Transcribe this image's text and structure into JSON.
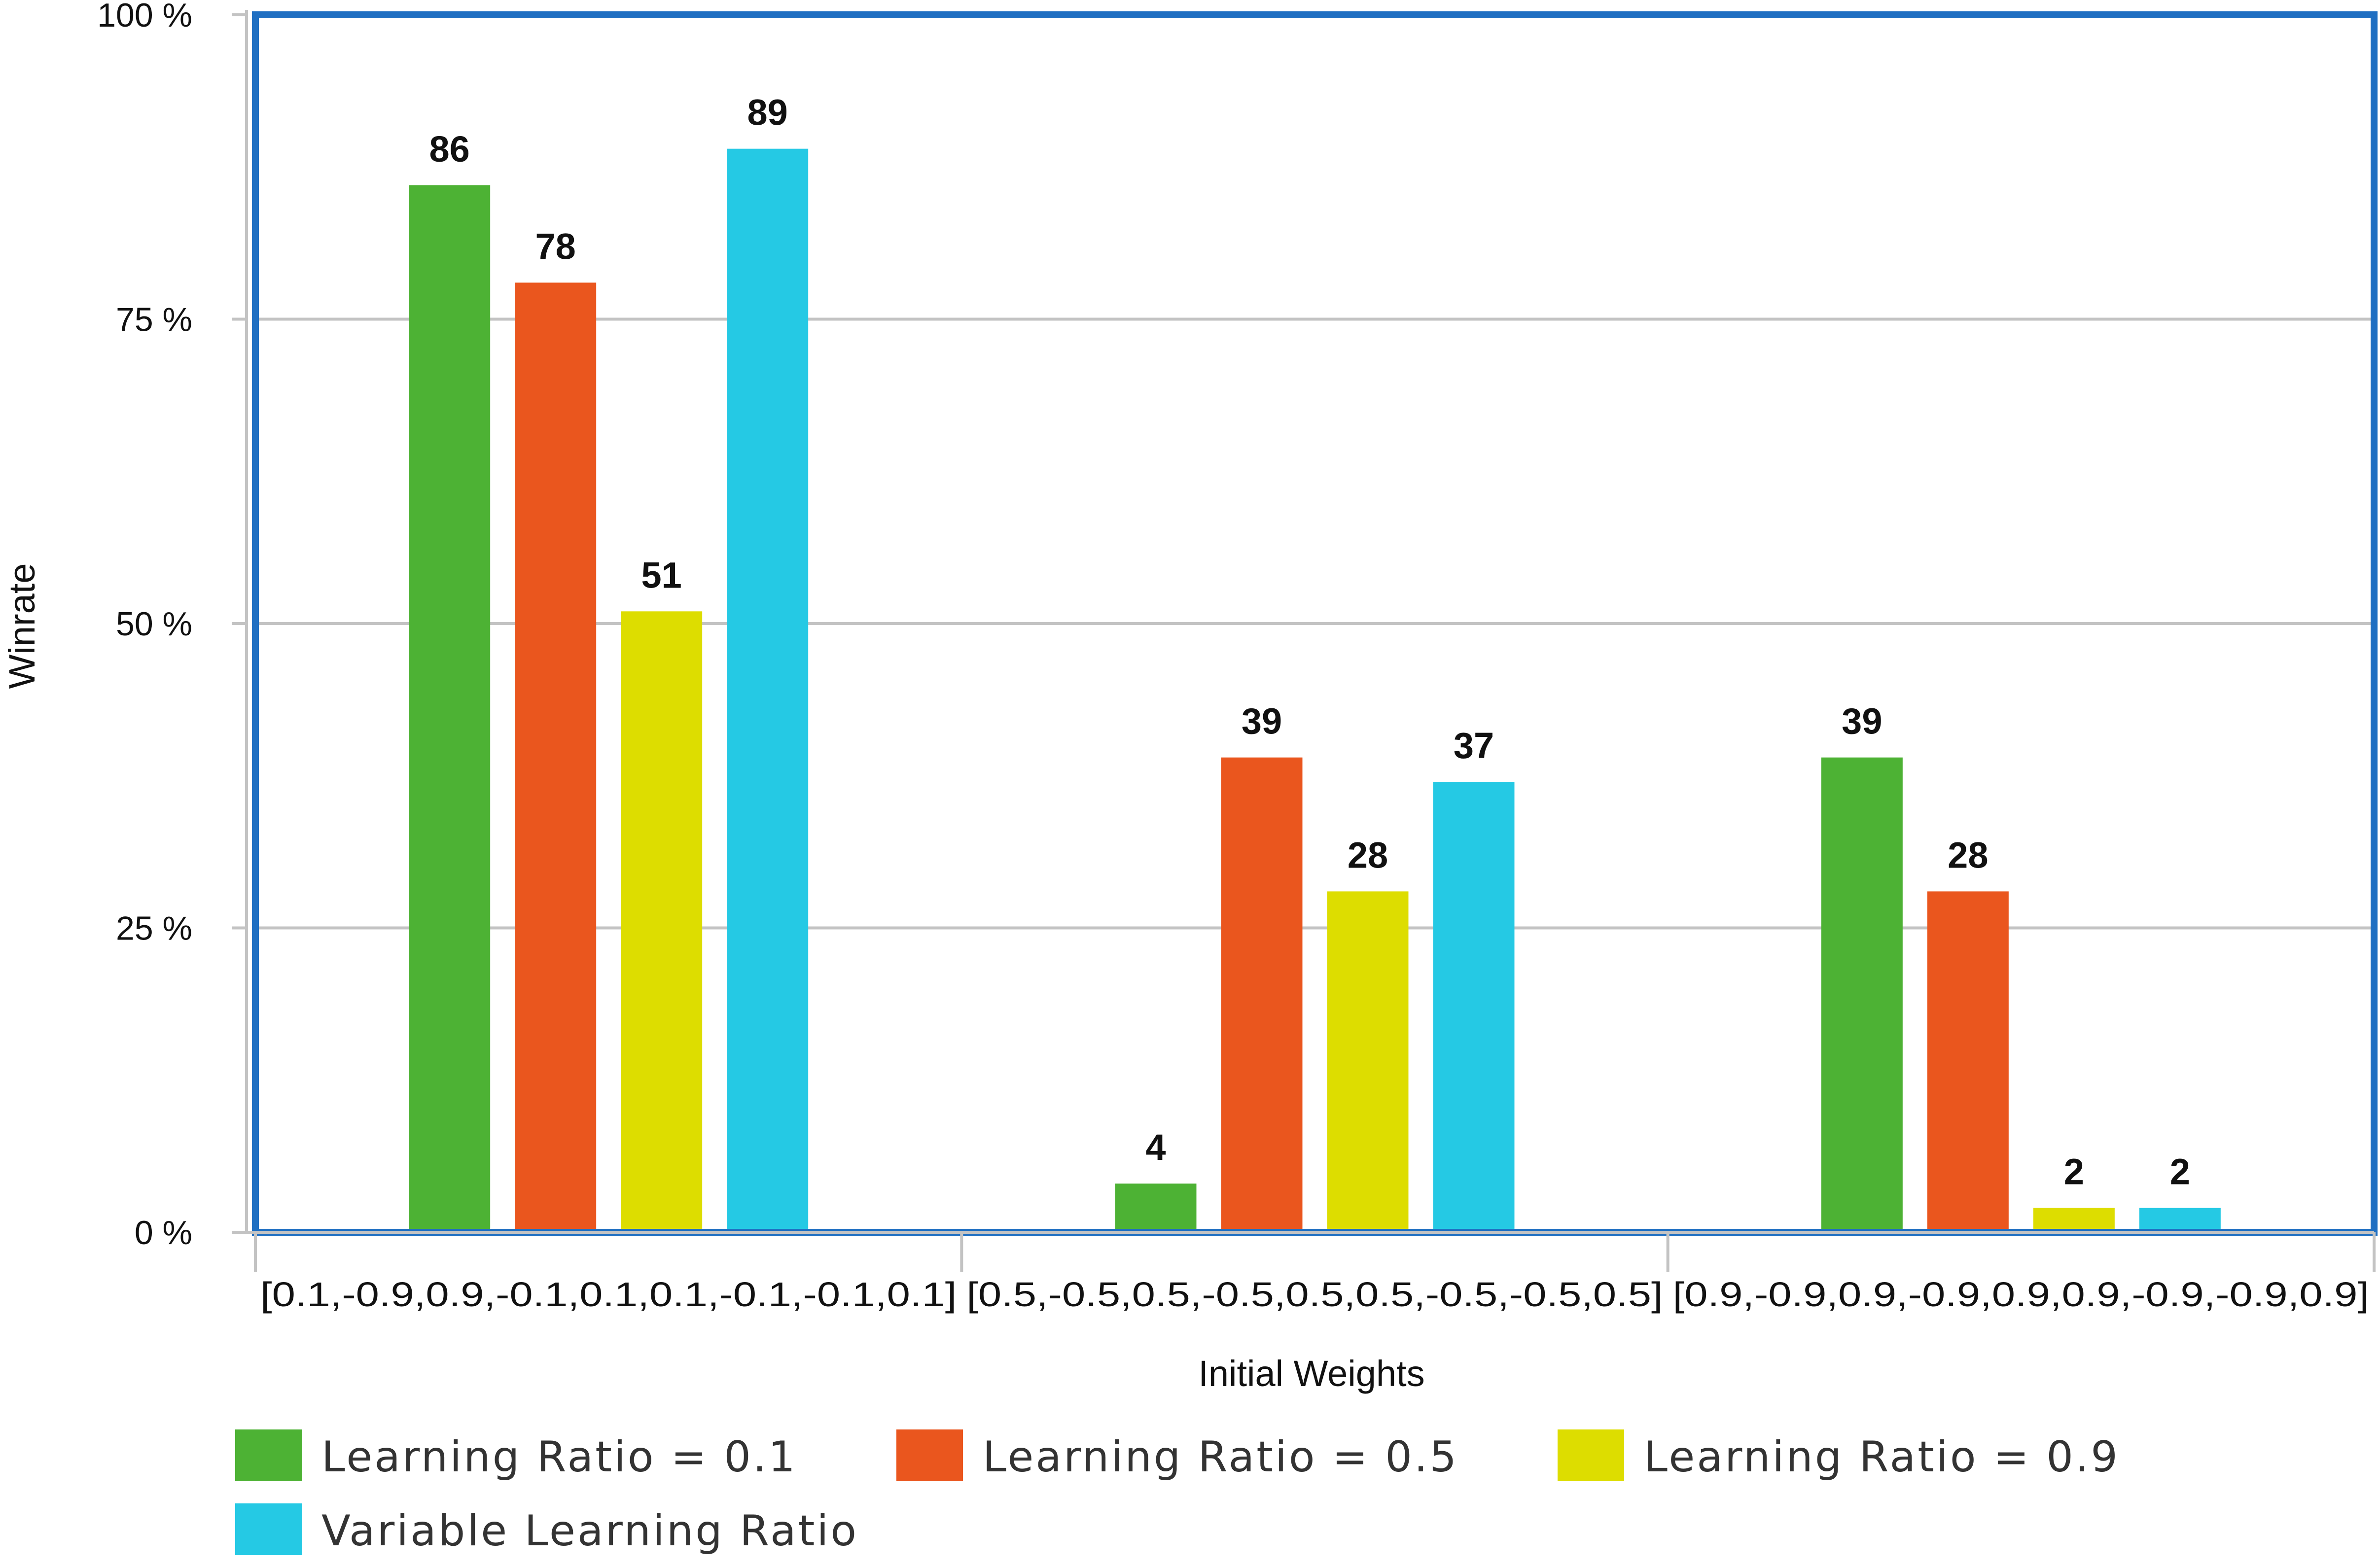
{
  "chart_data": {
    "type": "bar",
    "title": "",
    "xlabel": "Initial Weights",
    "ylabel": "Winrate",
    "ylim": [
      0,
      100
    ],
    "yticks": [
      "0 %",
      "25 %",
      "50 %",
      "75 %",
      "100 %"
    ],
    "ytick_values": [
      0,
      25,
      50,
      75,
      100
    ],
    "grid": true,
    "legend_position": "bottom",
    "categories": [
      "[0.1,-0.9,0.9,-0.1,0.1,0.1,-0.1,-0.1,0.1]",
      "[0.5,-0.5,0.5,-0.5,0.5,0.5,-0.5,-0.5,0.5]",
      "[0.9,-0.9,0.9,-0.9,0.9,0.9,-0.9,-0.9,0.9]"
    ],
    "series": [
      {
        "name": "Learning Ratio = 0.1",
        "color": "#4db234",
        "values": [
          86,
          4,
          39
        ]
      },
      {
        "name": "Learning Ratio = 0.5",
        "color": "#ea561e",
        "values": [
          78,
          39,
          28
        ]
      },
      {
        "name": "Learning Ratio = 0.9",
        "color": "#dddd00",
        "values": [
          51,
          28,
          2
        ]
      },
      {
        "name": "Variable Learning Ratio",
        "color": "#25c9e4",
        "values": [
          89,
          37,
          2
        ]
      }
    ],
    "data_labels": [
      [
        "86",
        "4",
        "39"
      ],
      [
        "78",
        "39",
        "28"
      ],
      [
        "51",
        "28",
        "2"
      ],
      [
        "89",
        "37",
        "2"
      ]
    ],
    "frame_color": "#1f6fc2",
    "grid_color": "#c3c3c3"
  }
}
